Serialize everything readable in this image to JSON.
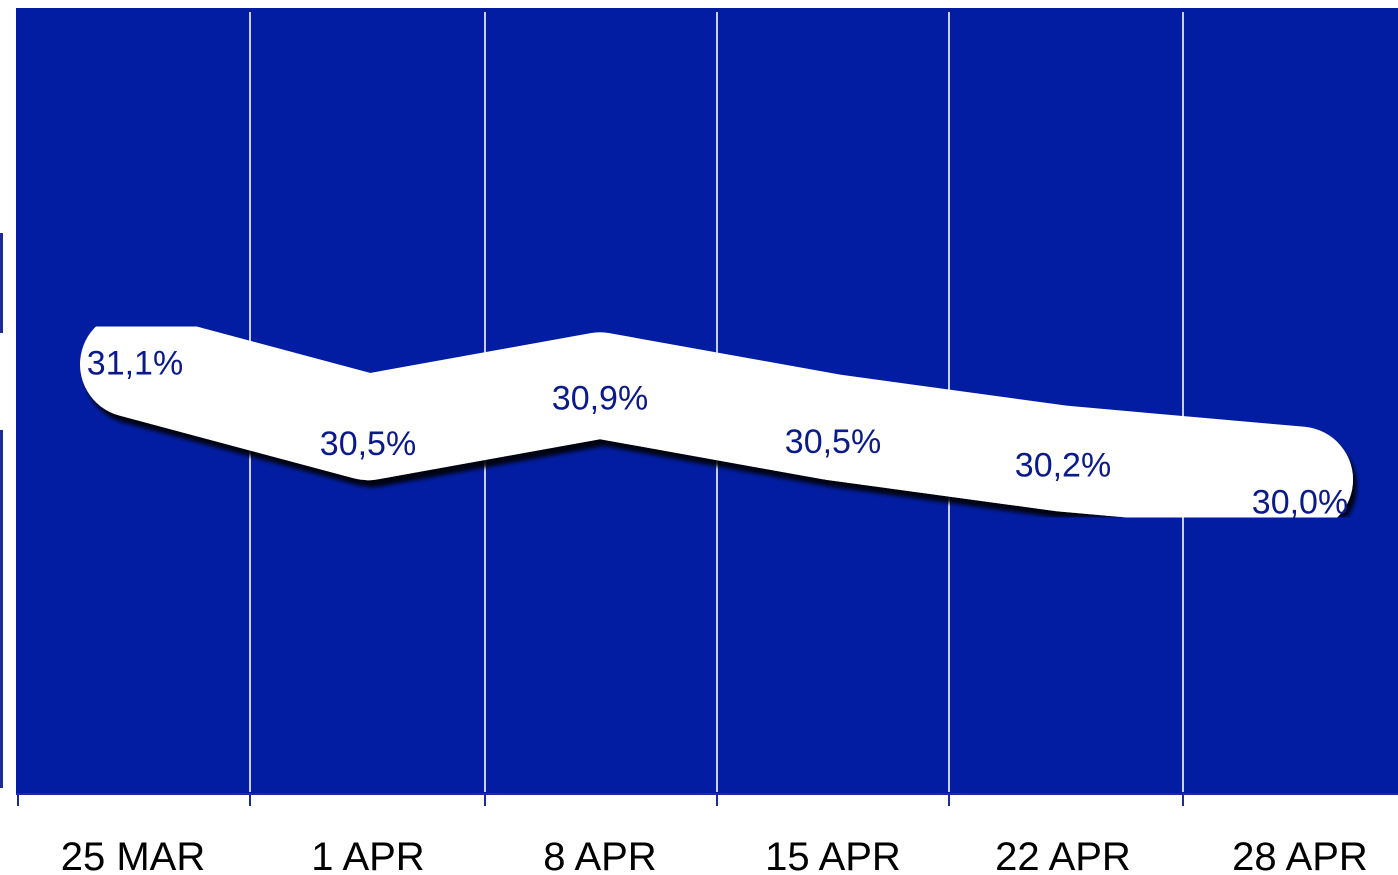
{
  "chart_data": {
    "type": "line",
    "title": "",
    "xlabel": "",
    "ylabel": "",
    "categories": [
      "25 MAR",
      "1 APR",
      "8 APR",
      "15 APR",
      "22 APR",
      "28 APR"
    ],
    "series": [
      {
        "values": [
          31.1,
          30.5,
          30.9,
          30.5,
          30.2,
          30.0
        ],
        "labels": [
          "31,1%",
          "30,5%",
          "30,9%",
          "30,5%",
          "30,2%",
          "30,0%"
        ]
      }
    ],
    "ylim": [
      27.0,
      34.5
    ],
    "grid": true,
    "legend": "none",
    "colors": {
      "background": "#021da2",
      "line": "#ffffff",
      "shadow": "#000000",
      "value_text": "#0b1a8a",
      "grid": "#c9cde6",
      "axis": "#1d2a9a",
      "tick_text": "#000000"
    }
  }
}
